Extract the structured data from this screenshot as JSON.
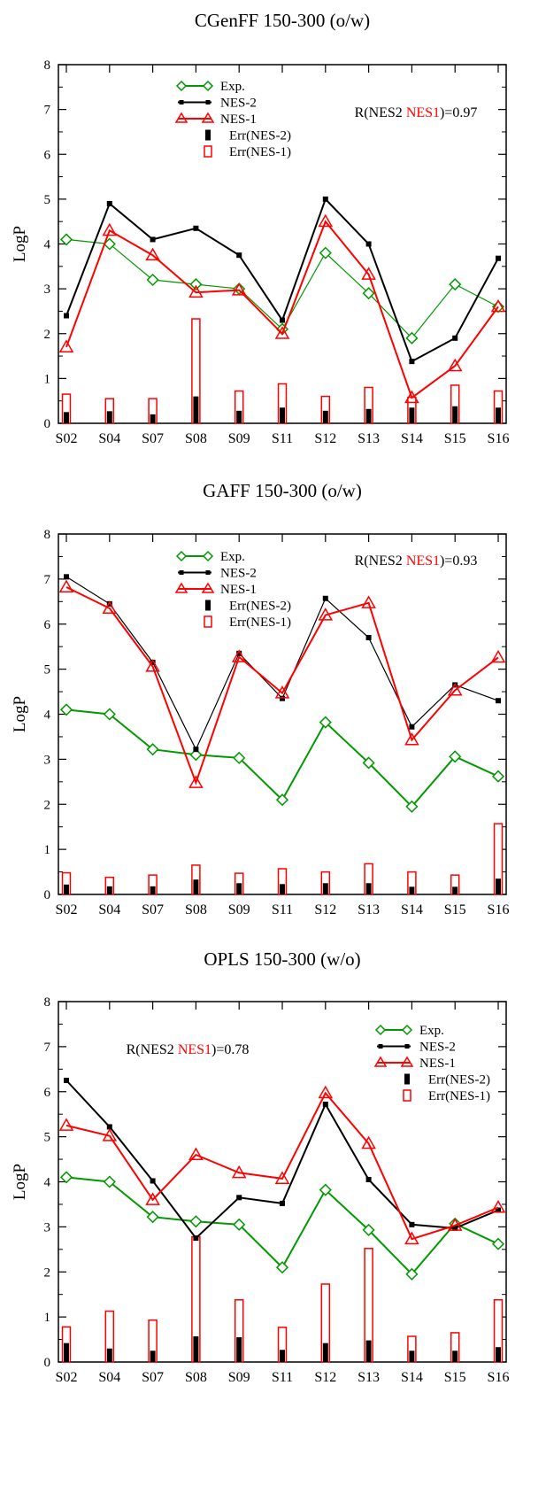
{
  "categories": [
    "S02",
    "S04",
    "S07",
    "S08",
    "S09",
    "S11",
    "S12",
    "S13",
    "S14",
    "S15",
    "S16"
  ],
  "colors": {
    "exp": "#009900",
    "nes2": "#000000",
    "nes1": "#ff0000"
  },
  "chart_data": [
    {
      "type": "line",
      "title": "CGenFF 150-300 (o/w)",
      "ylabel": "LogP",
      "xlabel": "",
      "ylim": [
        0,
        8
      ],
      "yticks": [
        "0",
        "1",
        "2",
        "3",
        "4",
        "5",
        "6",
        "7",
        "8"
      ],
      "grid": false,
      "legend_position": "top-left",
      "correlation": {
        "prefix": "R(NES2 ",
        "highlight": "NES1",
        "suffix": ")=0.97"
      },
      "series": [
        {
          "name": "Exp.",
          "values": [
            4.1,
            4.0,
            3.2,
            3.1,
            3.0,
            2.1,
            3.8,
            2.9,
            1.9,
            3.1,
            2.6
          ]
        },
        {
          "name": "NES-2",
          "values": [
            2.4,
            4.9,
            4.1,
            4.35,
            3.75,
            2.3,
            5.0,
            4.0,
            1.38,
            1.9,
            3.68
          ]
        },
        {
          "name": "NES-1",
          "values": [
            1.7,
            4.3,
            3.75,
            2.92,
            2.97,
            2.0,
            4.5,
            3.32,
            0.57,
            1.28,
            2.6
          ]
        },
        {
          "name": "Err(NES-2)",
          "values": [
            0.25,
            0.27,
            0.2,
            0.6,
            0.28,
            0.35,
            0.28,
            0.32,
            0.35,
            0.38,
            0.35
          ]
        },
        {
          "name": "Err(NES-1)",
          "values": [
            0.65,
            0.55,
            0.55,
            2.33,
            0.72,
            0.88,
            0.6,
            0.8,
            0.58,
            0.85,
            0.72
          ]
        }
      ]
    },
    {
      "type": "line",
      "title": "GAFF 150-300 (o/w)",
      "ylabel": "LogP",
      "xlabel": "",
      "ylim": [
        0,
        8
      ],
      "yticks": [
        "0",
        "1",
        "2",
        "3",
        "4",
        "5",
        "6",
        "7",
        "8"
      ],
      "grid": false,
      "legend_position": "top-left",
      "correlation": {
        "prefix": "R(NES2 ",
        "highlight": "NES1",
        "suffix": ")=0.93"
      },
      "series": [
        {
          "name": "Exp.",
          "values": [
            4.1,
            4.0,
            3.22,
            3.1,
            3.03,
            2.1,
            3.82,
            2.92,
            1.95,
            3.06,
            2.62
          ]
        },
        {
          "name": "NES-2",
          "values": [
            7.05,
            6.45,
            5.15,
            3.22,
            5.35,
            4.35,
            6.57,
            5.7,
            3.72,
            4.65,
            4.3
          ]
        },
        {
          "name": "NES-1",
          "values": [
            6.82,
            6.35,
            5.06,
            2.48,
            5.27,
            4.47,
            6.2,
            6.47,
            3.43,
            4.53,
            5.26
          ]
        },
        {
          "name": "Err(NES-2)",
          "values": [
            0.22,
            0.18,
            0.18,
            0.33,
            0.25,
            0.23,
            0.25,
            0.25,
            0.17,
            0.17,
            0.35
          ]
        },
        {
          "name": "Err(NES-1)",
          "values": [
            0.48,
            0.38,
            0.43,
            0.65,
            0.47,
            0.57,
            0.5,
            0.68,
            0.5,
            0.43,
            1.57
          ]
        }
      ]
    },
    {
      "type": "line",
      "title": "OPLS 150-300 (w/o)",
      "ylabel": "LogP",
      "xlabel": "",
      "ylim": [
        0,
        8
      ],
      "yticks": [
        "0",
        "1",
        "2",
        "3",
        "4",
        "5",
        "6",
        "7",
        "8"
      ],
      "grid": false,
      "legend_position": "top-right",
      "correlation": {
        "prefix": "R(NES2 ",
        "highlight": "NES1",
        "suffix": ")=0.78"
      },
      "series": [
        {
          "name": "Exp.",
          "values": [
            4.1,
            4.0,
            3.22,
            3.12,
            3.05,
            2.1,
            3.82,
            2.93,
            1.95,
            3.07,
            2.62
          ]
        },
        {
          "name": "NES-2",
          "values": [
            6.25,
            5.22,
            4.02,
            2.75,
            3.65,
            3.52,
            5.72,
            4.05,
            3.05,
            2.97,
            3.37
          ]
        },
        {
          "name": "NES-1",
          "values": [
            5.25,
            5.02,
            3.6,
            4.6,
            4.2,
            4.07,
            5.97,
            4.85,
            2.73,
            3.03,
            3.43
          ]
        },
        {
          "name": "Err(NES-2)",
          "values": [
            0.42,
            0.3,
            0.25,
            0.57,
            0.55,
            0.27,
            0.42,
            0.48,
            0.25,
            0.25,
            0.33
          ]
        },
        {
          "name": "Err(NES-1)",
          "values": [
            0.78,
            1.13,
            0.93,
            2.78,
            1.38,
            0.77,
            1.73,
            2.52,
            0.57,
            0.65,
            1.38
          ]
        }
      ]
    }
  ]
}
